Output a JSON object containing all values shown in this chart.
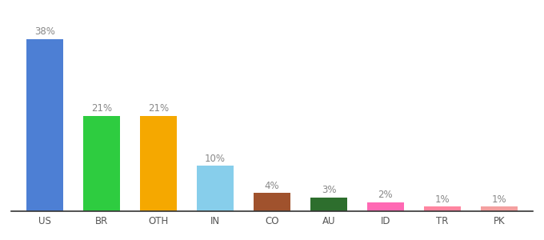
{
  "categories": [
    "US",
    "BR",
    "OTH",
    "IN",
    "CO",
    "AU",
    "ID",
    "TR",
    "PK"
  ],
  "values": [
    38,
    21,
    21,
    10,
    4,
    3,
    2,
    1,
    1
  ],
  "bar_colors": [
    "#4d7fd4",
    "#2ecc40",
    "#f5a800",
    "#87ceeb",
    "#a0522d",
    "#2d6e2d",
    "#ff69b4",
    "#ff85a0",
    "#f4a0a0"
  ],
  "label_color": "#888888",
  "label_fontsize": 8.5,
  "xlabel_fontsize": 8.5,
  "xlabel_color": "#555555",
  "background_color": "#ffffff",
  "ylim": [
    0,
    44
  ],
  "bar_width": 0.65
}
